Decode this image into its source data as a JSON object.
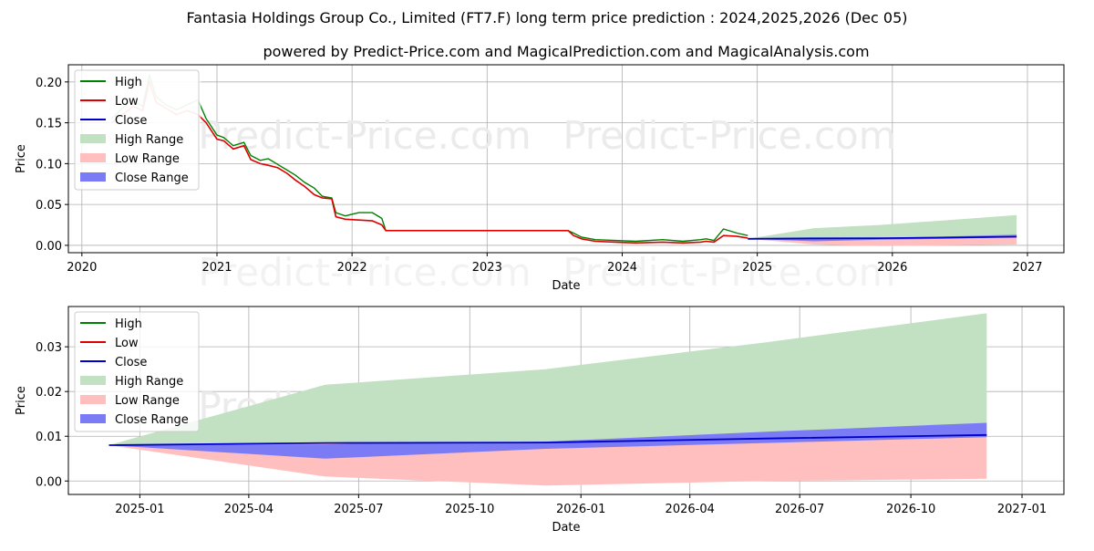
{
  "title": "Fantasia Holdings Group Co., Limited (FT7.F) long term price prediction : 2024,2025,2026 (Dec 05)",
  "subtitle": "powered by Predict-Price.com and MagicalPrediction.com and MagicalAnalysis.com",
  "watermark": "Predict-Price.com",
  "colors": {
    "high": "#008000",
    "low": "#dd0000",
    "close": "#0000cc",
    "high_range": "#c2e0c2",
    "low_range": "#ffbfbf",
    "close_range": "#7b7bf5",
    "grid": "#b0b0b0"
  },
  "legend": [
    "High",
    "Low",
    "Close",
    "High Range",
    "Low Range",
    "Close Range"
  ],
  "chart_data": [
    {
      "type": "line",
      "xlabel": "Date",
      "ylabel": "Price",
      "xlim": [
        2019.9,
        2027.27
      ],
      "ylim": [
        -0.009,
        0.221
      ],
      "x_ticks": [
        2020,
        2021,
        2022,
        2023,
        2024,
        2025,
        2026,
        2027
      ],
      "x_tick_labels": [
        "2020",
        "2021",
        "2022",
        "2023",
        "2024",
        "2025",
        "2026",
        "2027"
      ],
      "y_ticks": [
        0.0,
        0.05,
        0.1,
        0.15,
        0.2
      ],
      "y_tick_labels": [
        "0.00",
        "0.05",
        "0.10",
        "0.15",
        "0.20"
      ],
      "grid": true,
      "legend_position": "top-left",
      "history": {
        "x": [
          2020.22,
          2020.3,
          2020.38,
          2020.45,
          2020.5,
          2020.55,
          2020.62,
          2020.7,
          2020.78,
          2020.86,
          2020.92,
          2021.0,
          2021.05,
          2021.12,
          2021.2,
          2021.25,
          2021.32,
          2021.38,
          2021.45,
          2021.52,
          2021.58,
          2021.65,
          2021.72,
          2021.78,
          2021.85,
          2021.88,
          2021.95,
          2022.05,
          2022.15,
          2022.22,
          2022.25,
          2022.5,
          2022.8,
          2023.1,
          2023.4,
          2023.6,
          2023.64,
          2023.7,
          2023.8,
          2023.95,
          2024.1,
          2024.3,
          2024.45,
          2024.58,
          2024.62,
          2024.68,
          2024.75,
          2024.85,
          2024.93
        ],
        "low": [
          0.15,
          0.16,
          0.17,
          0.165,
          0.2,
          0.175,
          0.168,
          0.16,
          0.165,
          0.16,
          0.15,
          0.13,
          0.128,
          0.118,
          0.122,
          0.105,
          0.1,
          0.098,
          0.095,
          0.088,
          0.08,
          0.072,
          0.062,
          0.058,
          0.057,
          0.035,
          0.032,
          0.031,
          0.03,
          0.025,
          0.018,
          0.018,
          0.018,
          0.018,
          0.018,
          0.018,
          0.012,
          0.008,
          0.005,
          0.004,
          0.003,
          0.004,
          0.003,
          0.004,
          0.005,
          0.004,
          0.012,
          0.011,
          0.009
        ],
        "high": [
          0.155,
          0.168,
          0.178,
          0.17,
          0.208,
          0.182,
          0.172,
          0.166,
          0.172,
          0.178,
          0.155,
          0.135,
          0.132,
          0.122,
          0.126,
          0.11,
          0.104,
          0.106,
          0.099,
          0.092,
          0.086,
          0.077,
          0.07,
          0.06,
          0.058,
          0.04,
          0.036,
          0.04,
          0.04,
          0.033,
          0.018,
          0.018,
          0.018,
          0.018,
          0.018,
          0.018,
          0.015,
          0.01,
          0.007,
          0.006,
          0.005,
          0.007,
          0.005,
          0.007,
          0.008,
          0.006,
          0.02,
          0.015,
          0.012
        ]
      },
      "prediction": {
        "x": [
          2024.93,
          2025.42,
          2025.92,
          2026.42,
          2026.92
        ],
        "high_range_upper": [
          0.008,
          0.021,
          0.025,
          0.031,
          0.037
        ],
        "low_range_lower": [
          0.008,
          0.001,
          -0.001,
          0.0,
          0.001
        ],
        "close_range_upper": [
          0.008,
          0.008,
          0.009,
          0.011,
          0.013
        ],
        "close_range_lower": [
          0.008,
          0.005,
          0.007,
          0.008,
          0.01
        ],
        "close": [
          0.008,
          0.0085,
          0.0088,
          0.0095,
          0.0105
        ]
      }
    },
    {
      "type": "area",
      "xlabel": "Date",
      "ylabel": "Price",
      "xlim": [
        2024.838,
        2027.095
      ],
      "ylim": [
        -0.003,
        0.039
      ],
      "x_ticks": [
        2025.0,
        2025.247,
        2025.496,
        2025.748,
        2026.0,
        2026.247,
        2026.496,
        2026.748,
        2027.0
      ],
      "x_tick_labels": [
        "2025-01",
        "2025-04",
        "2025-07",
        "2025-10",
        "2026-01",
        "2026-04",
        "2026-07",
        "2026-10",
        "2027-01"
      ],
      "y_ticks": [
        0.0,
        0.01,
        0.02,
        0.03
      ],
      "y_tick_labels": [
        "0.00",
        "0.01",
        "0.02",
        "0.03"
      ],
      "grid": true,
      "legend_position": "top-left",
      "prediction": {
        "x": [
          2024.93,
          2025.42,
          2025.92,
          2026.42,
          2026.92
        ],
        "high_range_upper": [
          0.008,
          0.0215,
          0.025,
          0.031,
          0.0375
        ],
        "low_range_lower": [
          0.008,
          0.001,
          -0.001,
          0.0,
          0.0005
        ],
        "close_range_upper": [
          0.008,
          0.0082,
          0.0088,
          0.011,
          0.013
        ],
        "close_range_lower": [
          0.008,
          0.005,
          0.0072,
          0.0085,
          0.0098
        ],
        "close": [
          0.008,
          0.0085,
          0.0086,
          0.0095,
          0.0103
        ]
      }
    }
  ]
}
